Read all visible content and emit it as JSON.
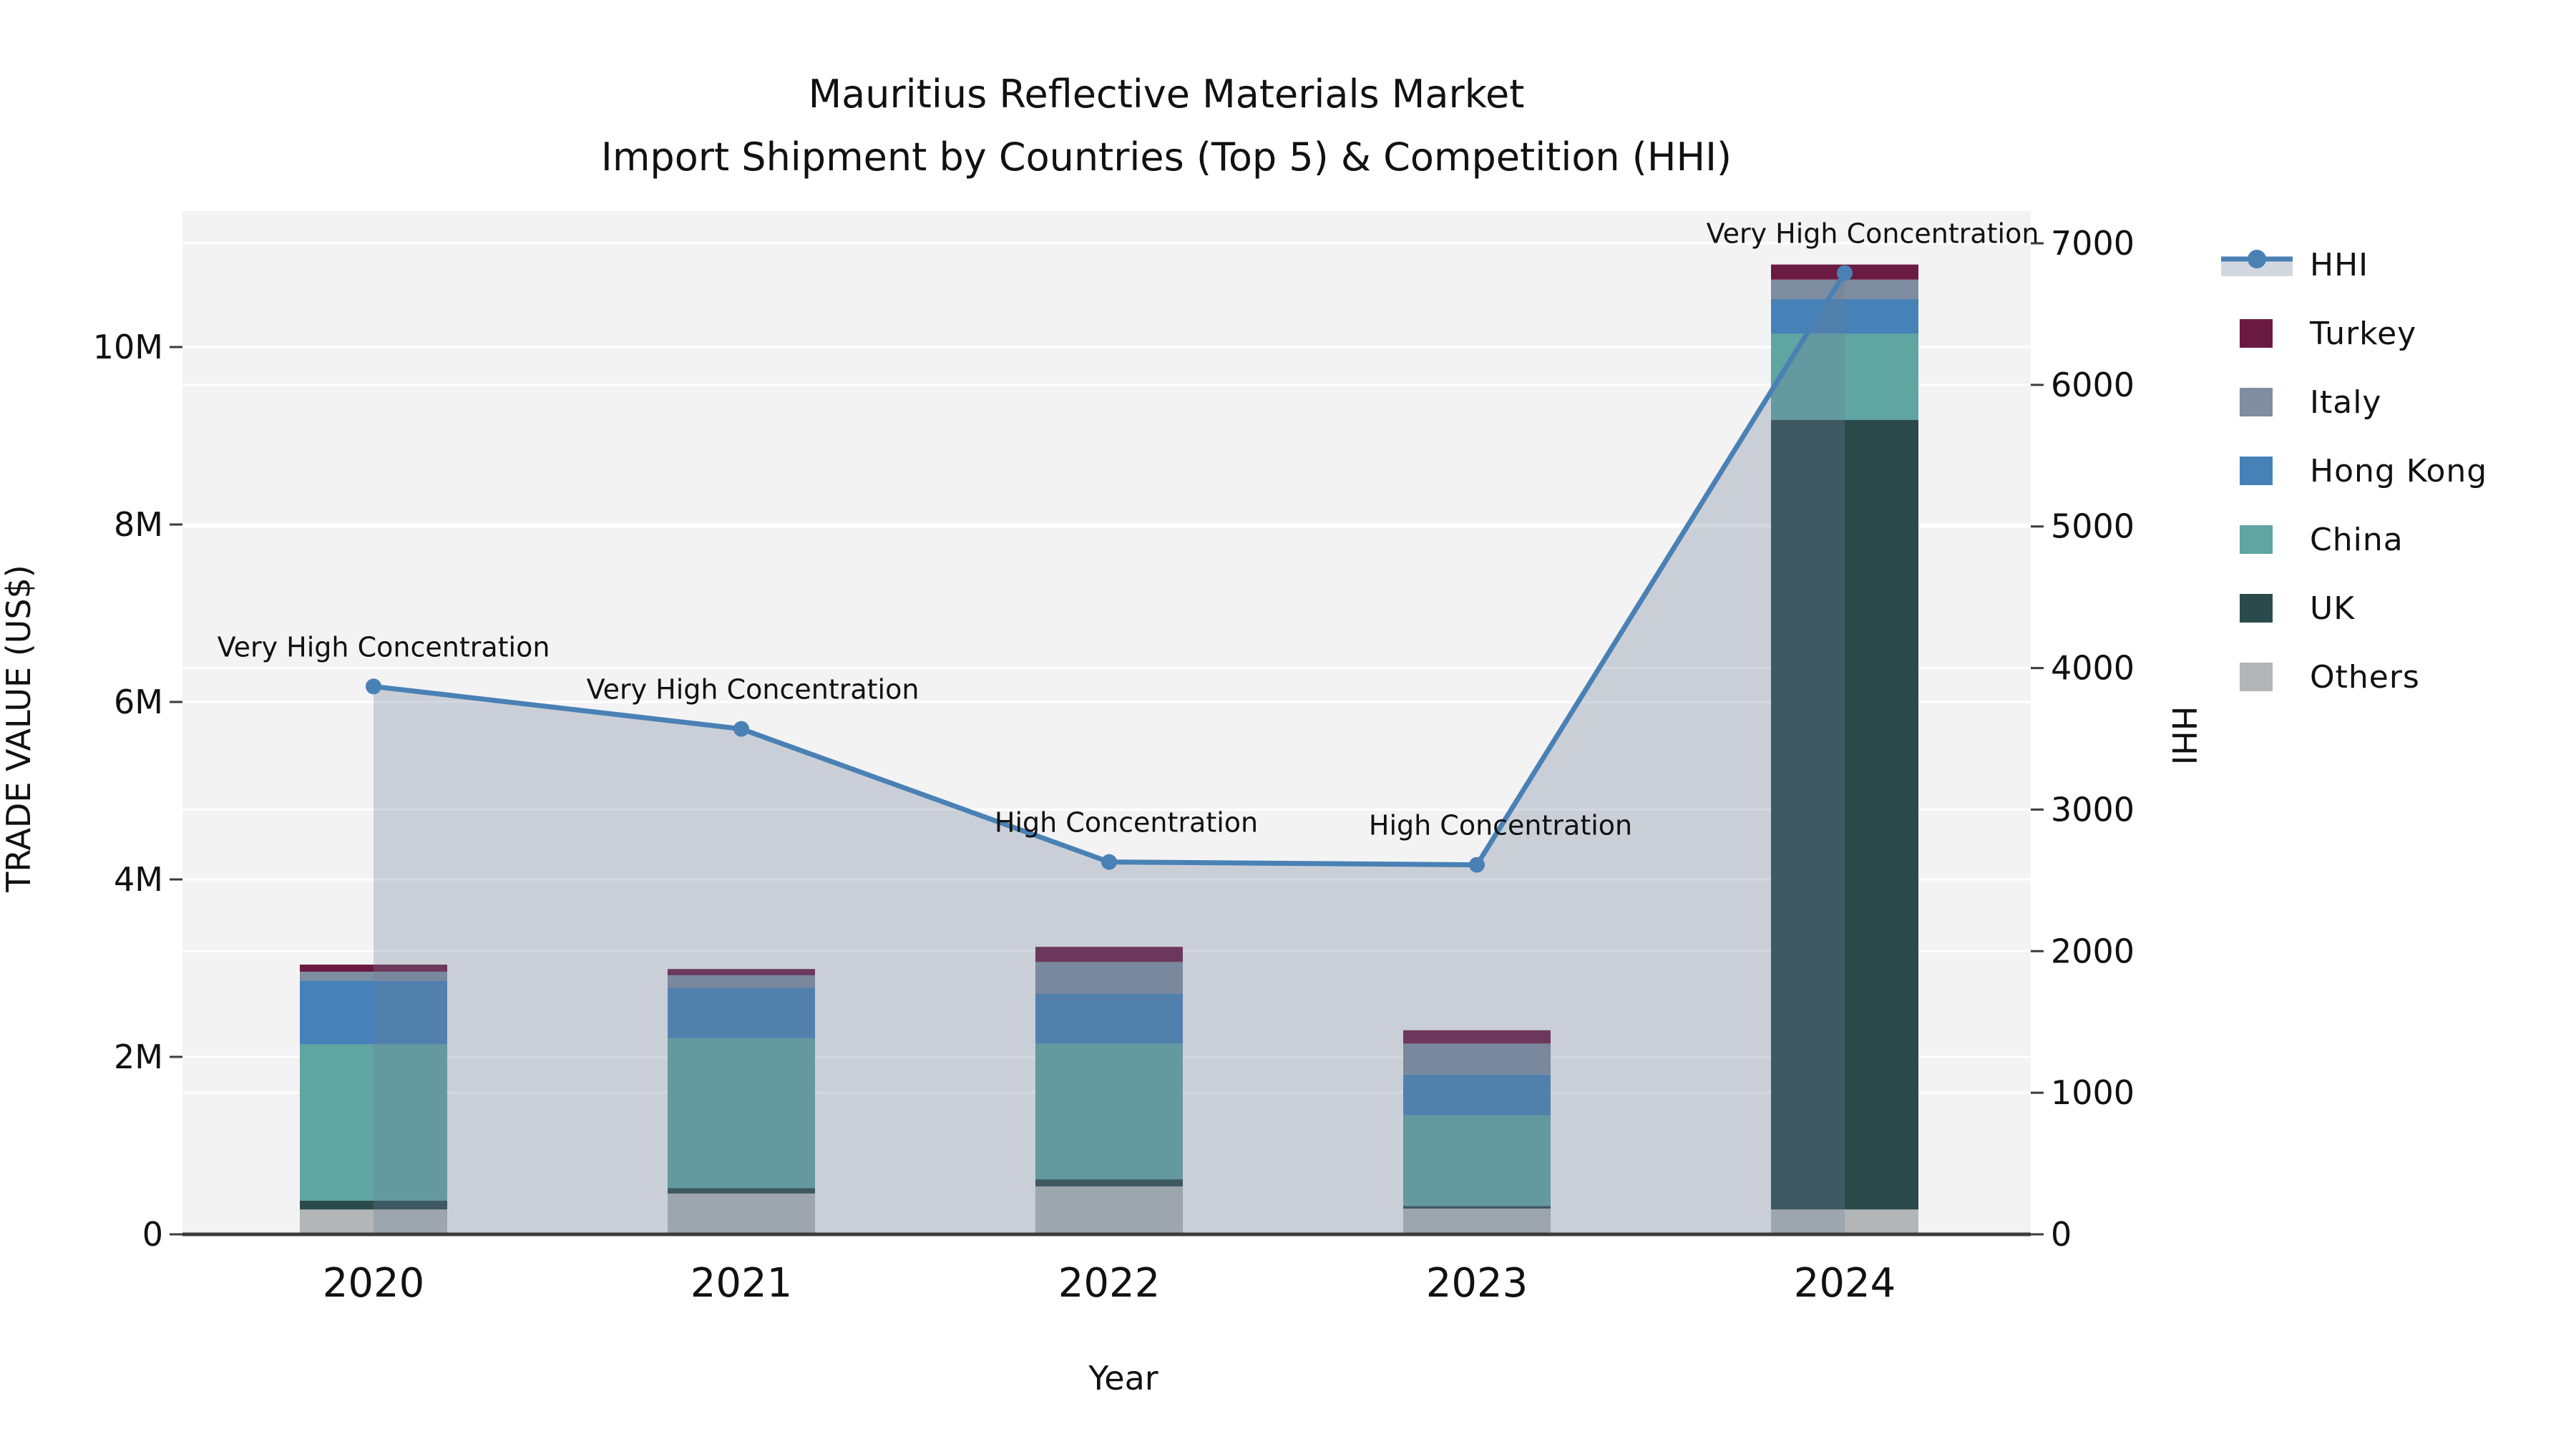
{
  "title": {
    "line1": "Mauritius Reflective Materials Market",
    "line2": "Import Shipment by Countries (Top 5) & Competition (HHI)"
  },
  "axes": {
    "x": {
      "title": "Year",
      "tick_labels": [
        "2020",
        "2021",
        "2022",
        "2023",
        "2024"
      ]
    },
    "y_left": {
      "title": "TRADE VALUE (US$)",
      "tick_labels": [
        "0",
        "2M",
        "4M",
        "6M",
        "8M",
        "10M"
      ],
      "tick_values": [
        0,
        2000000,
        4000000,
        6000000,
        8000000,
        10000000
      ],
      "range": [
        0,
        11530000
      ]
    },
    "y_right": {
      "title": "HHI",
      "tick_labels": [
        "0",
        "1000",
        "2000",
        "3000",
        "4000",
        "5000",
        "6000",
        "7000"
      ],
      "tick_values": [
        0,
        1000,
        2000,
        3000,
        4000,
        5000,
        6000,
        7000
      ],
      "range": [
        0,
        7225
      ]
    }
  },
  "legend": {
    "items": [
      {
        "label": "HHI",
        "type": "line",
        "color": "#4A81B5"
      },
      {
        "label": "Turkey",
        "type": "swatch",
        "color": "#6B1B41"
      },
      {
        "label": "Italy",
        "type": "swatch",
        "color": "#7E8DA0"
      },
      {
        "label": "Hong Kong",
        "type": "swatch",
        "color": "#4681B7"
      },
      {
        "label": "China",
        "type": "swatch",
        "color": "#5FA5A2"
      },
      {
        "label": "UK",
        "type": "swatch",
        "color": "#2B4A4B"
      },
      {
        "label": "Others",
        "type": "swatch",
        "color": "#B2B6B6"
      }
    ]
  },
  "chart_data": {
    "type": "combo_stacked_bar_line",
    "x": [
      "2020",
      "2021",
      "2022",
      "2023",
      "2024"
    ],
    "bar_value_unit": "US$",
    "bar_series": [
      {
        "name": "Others",
        "color": "#B2B6B6",
        "values": [
          280000,
          460000,
          540000,
          290000,
          280000
        ]
      },
      {
        "name": "UK",
        "color": "#2B4A4B",
        "values": [
          100000,
          60000,
          80000,
          30000,
          8900000
        ]
      },
      {
        "name": "China",
        "color": "#5FA5A2",
        "values": [
          1760000,
          1690000,
          1530000,
          1020000,
          970000
        ]
      },
      {
        "name": "Hong Kong",
        "color": "#4681B7",
        "values": [
          720000,
          570000,
          560000,
          460000,
          390000
        ]
      },
      {
        "name": "Italy",
        "color": "#7E8DA0",
        "values": [
          100000,
          140000,
          360000,
          350000,
          220000
        ]
      },
      {
        "name": "Turkey",
        "color": "#6B1B41",
        "values": [
          80000,
          70000,
          170000,
          150000,
          170000
        ]
      }
    ],
    "line_series": {
      "name": "HHI",
      "axis": "right",
      "color": "#4A81B5",
      "fill_color": "rgba(108,126,152,0.30)",
      "values": [
        3870,
        3570,
        2630,
        2610,
        6790
      ],
      "annotations": [
        "Very High Concentration",
        "Very High Concentration",
        "High Concentration",
        "High Concentration",
        "Very High Concentration"
      ]
    },
    "layout_hints": {
      "grid": "horizontal-white",
      "plot_background": "#F3F3F3",
      "axis_line_color": "#3B3B3B",
      "legend_position": "right"
    }
  }
}
